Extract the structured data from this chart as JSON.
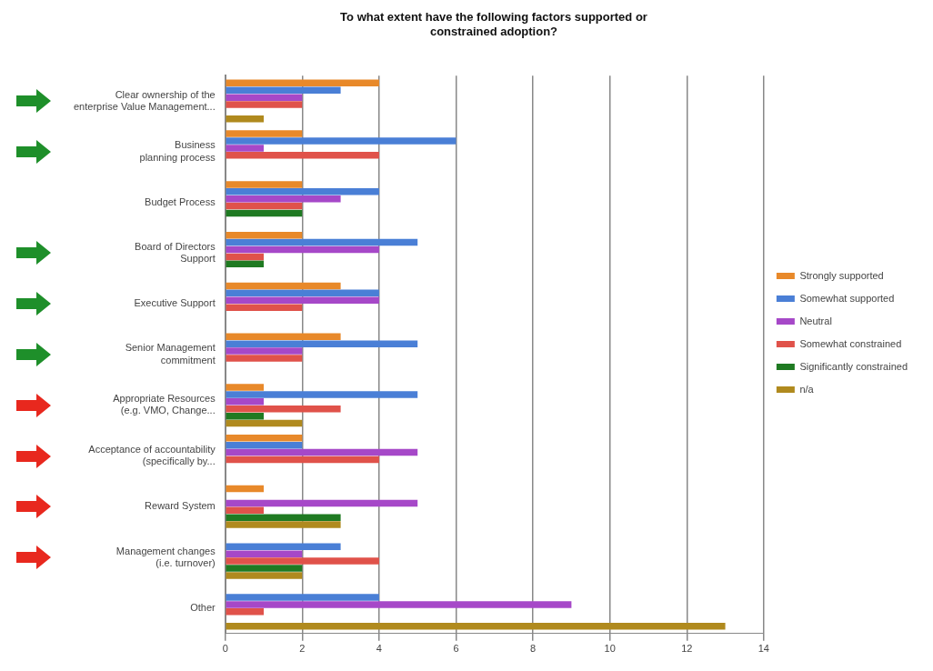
{
  "chart_data": {
    "type": "bar",
    "orientation": "horizontal",
    "title": "To what extent have the following factors supported or\nconstrained adoption?",
    "categories": [
      "Clear ownership of the\nenterprise Value Management...",
      "Business\nplanning process",
      "Budget Process",
      "Board of Directors\nSupport",
      "Executive Support",
      "Senior Management\ncommitment",
      "Appropriate Resources\n(e.g. VMO, Change...",
      "Acceptance of accountability\n(specifically by...",
      "Reward System",
      "Management changes\n(i.e. turnover)",
      "Other"
    ],
    "series": [
      {
        "name": "Strongly supported",
        "color": "#e8892a",
        "values": [
          4,
          2,
          2,
          2,
          3,
          3,
          1,
          2,
          1,
          0,
          0
        ]
      },
      {
        "name": "Somewhat supported",
        "color": "#4a7fd6",
        "values": [
          3,
          6,
          4,
          5,
          4,
          5,
          5,
          2,
          0,
          3,
          4
        ]
      },
      {
        "name": "Neutral",
        "color": "#a648c8",
        "values": [
          2,
          1,
          3,
          4,
          4,
          2,
          1,
          5,
          5,
          2,
          9
        ]
      },
      {
        "name": "Somewhat constrained",
        "color": "#e0524a",
        "values": [
          2,
          4,
          2,
          1,
          2,
          2,
          3,
          4,
          1,
          4,
          1
        ]
      },
      {
        "name": "Significantly constrained",
        "color": "#1f7a22",
        "values": [
          0,
          0,
          2,
          1,
          0,
          0,
          1,
          0,
          3,
          2,
          0
        ]
      },
      {
        "name": "n/a",
        "color": "#b08a1e",
        "values": [
          1,
          0,
          0,
          0,
          0,
          0,
          2,
          0,
          3,
          2,
          13
        ]
      }
    ],
    "xlim": [
      0,
      14
    ],
    "xticks": [
      0,
      2,
      4,
      6,
      8,
      10,
      12,
      14
    ],
    "grid": "x",
    "legend": "right"
  }
}
